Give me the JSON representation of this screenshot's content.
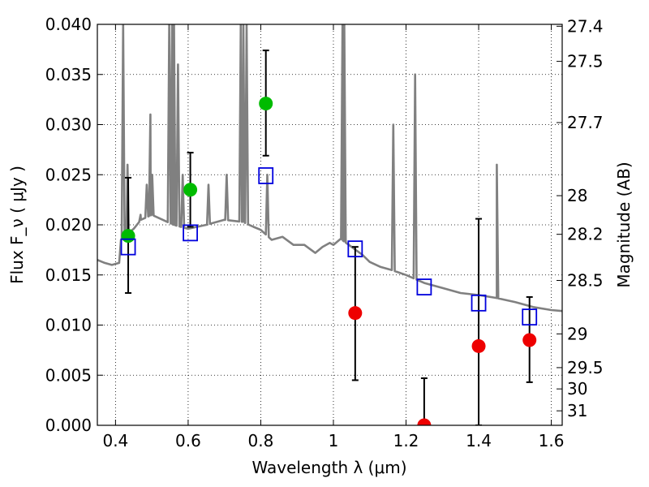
{
  "chart_data": {
    "type": "scatter",
    "title": "",
    "xlabel": "Wavelength  λ (μm)",
    "ylabel": "Flux  F_ν  ( μJy )",
    "y2label": "Magnitude (AB)",
    "xlim": [
      0.35,
      1.63
    ],
    "ylim": [
      0.0,
      0.04
    ],
    "grid": true,
    "x_ticks": [
      0.4,
      0.6,
      0.8,
      1.0,
      1.2,
      1.4,
      1.6
    ],
    "x_tick_labels": [
      "0.4",
      "0.6",
      "0.8",
      "1",
      "1.2",
      "1.4",
      "1.6"
    ],
    "y_ticks": [
      0.0,
      0.005,
      0.01,
      0.015,
      0.02,
      0.025,
      0.03,
      0.035,
      0.04
    ],
    "y_tick_labels": [
      "0.000",
      "0.005",
      "0.010",
      "0.015",
      "0.020",
      "0.025",
      "0.030",
      "0.035",
      "0.040"
    ],
    "y2_ticks": [
      27.4,
      27.5,
      27.7,
      28,
      28.2,
      28.5,
      29,
      29.5,
      30,
      31
    ],
    "y2_tick_labels": [
      "27.4",
      "27.5",
      "27.7",
      "28",
      "28.2",
      "28.5",
      "29",
      "29.5",
      "30",
      "31"
    ],
    "colors": {
      "spectrum": "#808080",
      "detection": "#00bb00",
      "non_detection": "#ee0000",
      "model": "#0000dd",
      "errorbar": "#000000"
    },
    "series": [
      {
        "kind": "line",
        "color_key": "spectrum",
        "points": [
          [
            0.35,
            0.0165
          ],
          [
            0.37,
            0.0162
          ],
          [
            0.39,
            0.016
          ],
          [
            0.41,
            0.0162
          ],
          [
            0.415,
            0.0185
          ],
          [
            0.43,
            0.019
          ],
          [
            0.45,
            0.0196
          ],
          [
            0.47,
            0.0205
          ],
          [
            0.5,
            0.021
          ],
          [
            0.53,
            0.0205
          ],
          [
            0.56,
            0.02
          ],
          [
            0.6,
            0.0196
          ],
          [
            0.65,
            0.02
          ],
          [
            0.7,
            0.0205
          ],
          [
            0.75,
            0.0203
          ],
          [
            0.78,
            0.0198
          ],
          [
            0.8,
            0.0195
          ],
          [
            0.83,
            0.0185
          ],
          [
            0.86,
            0.0188
          ],
          [
            0.89,
            0.018
          ],
          [
            0.92,
            0.018
          ],
          [
            0.95,
            0.0172
          ],
          [
            0.97,
            0.0178
          ],
          [
            0.99,
            0.0182
          ],
          [
            1.0,
            0.018
          ],
          [
            1.02,
            0.0186
          ],
          [
            1.05,
            0.0178
          ],
          [
            1.08,
            0.017
          ],
          [
            1.1,
            0.0163
          ],
          [
            1.13,
            0.0158
          ],
          [
            1.16,
            0.0155
          ],
          [
            1.2,
            0.015
          ],
          [
            1.25,
            0.0142
          ],
          [
            1.3,
            0.0137
          ],
          [
            1.35,
            0.0132
          ],
          [
            1.4,
            0.013
          ],
          [
            1.45,
            0.0127
          ],
          [
            1.5,
            0.0123
          ],
          [
            1.55,
            0.0118
          ],
          [
            1.6,
            0.0115
          ],
          [
            1.63,
            0.0114
          ]
        ],
        "lines": [
          [
            0.421,
            0.04
          ],
          [
            0.433,
            0.026
          ],
          [
            0.469,
            0.021
          ],
          [
            0.486,
            0.024
          ],
          [
            0.496,
            0.031
          ],
          [
            0.501,
            0.025
          ],
          [
            0.548,
            0.04
          ],
          [
            0.556,
            0.04
          ],
          [
            0.561,
            0.04
          ],
          [
            0.572,
            0.036
          ],
          [
            0.585,
            0.025
          ],
          [
            0.656,
            0.024
          ],
          [
            0.706,
            0.025
          ],
          [
            0.745,
            0.04
          ],
          [
            0.752,
            0.04
          ],
          [
            0.761,
            0.04
          ],
          [
            0.818,
            0.025
          ],
          [
            1.025,
            0.04
          ],
          [
            1.03,
            0.04
          ],
          [
            1.165,
            0.03
          ],
          [
            1.225,
            0.035
          ],
          [
            1.45,
            0.026
          ]
        ]
      },
      {
        "name": "",
        "kind": "points",
        "color_key": "detection",
        "points": [
          {
            "x": 0.435,
            "y": 0.0189,
            "yerr_low": 0.0132,
            "yerr_high": 0.0247
          },
          {
            "x": 0.606,
            "y": 0.0235,
            "yerr_low": 0.0198,
            "yerr_high": 0.0272
          },
          {
            "x": 0.814,
            "y": 0.0321,
            "yerr_low": 0.0269,
            "yerr_high": 0.0374
          }
        ]
      },
      {
        "name": "",
        "kind": "points",
        "color_key": "non_detection",
        "points": [
          {
            "x": 1.06,
            "y": 0.0112,
            "yerr_low": 0.0045,
            "yerr_high": 0.0178
          },
          {
            "x": 1.25,
            "y": 0.0,
            "yerr_low": 0.0,
            "yerr_high": 0.0047
          },
          {
            "x": 1.4,
            "y": 0.0079,
            "yerr_low": 0.0,
            "yerr_high": 0.0206
          },
          {
            "x": 1.54,
            "y": 0.0085,
            "yerr_low": 0.0043,
            "yerr_high": 0.0128
          }
        ]
      },
      {
        "name": "",
        "kind": "squares",
        "color_key": "model",
        "points": [
          {
            "x": 0.435,
            "y": 0.0178
          },
          {
            "x": 0.606,
            "y": 0.0192
          },
          {
            "x": 0.814,
            "y": 0.0249
          },
          {
            "x": 1.06,
            "y": 0.0176
          },
          {
            "x": 1.25,
            "y": 0.0138
          },
          {
            "x": 1.4,
            "y": 0.0122
          },
          {
            "x": 1.54,
            "y": 0.0108
          }
        ]
      }
    ]
  }
}
